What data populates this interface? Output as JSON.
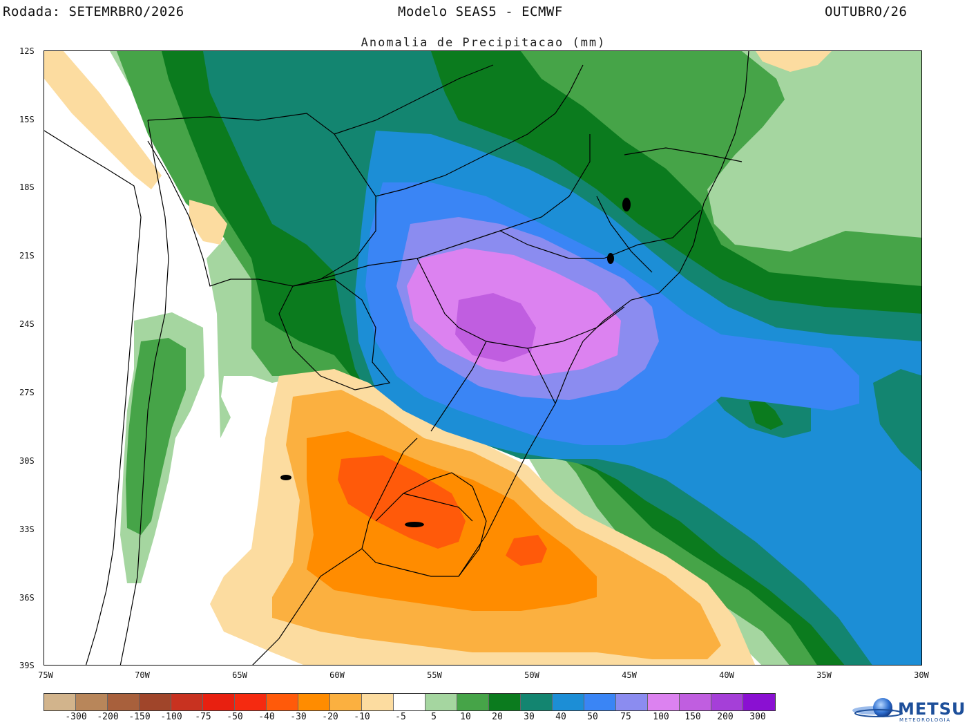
{
  "header": {
    "left": "Rodada: SETEMRBRO/2026",
    "center": "Modelo SEAS5 - ECMWF",
    "right": "OUTUBRO/26"
  },
  "subtitle": "Anomalia de Precipitacao (mm)",
  "latitude_labels": [
    "12S",
    "15S",
    "18S",
    "21S",
    "24S",
    "27S",
    "30S",
    "33S",
    "36S",
    "39S"
  ],
  "longitude_labels": [
    "75W",
    "70W",
    "65W",
    "60W",
    "55W",
    "50W",
    "45W",
    "40W",
    "35W",
    "30W"
  ],
  "colorbar": {
    "colors": [
      "#d2b48c",
      "#b8865a",
      "#a8603c",
      "#a0452a",
      "#c83220",
      "#e82010",
      "#f52a10",
      "#ff5a0a",
      "#ff8c00",
      "#fbb040",
      "#fcdca0",
      "#ffffff",
      "#a5d6a0",
      "#46a448",
      "#0b7b1e",
      "#138570",
      "#1c8ed6",
      "#3a85f5",
      "#8b8cf0",
      "#dc82f0",
      "#c05ee0",
      "#a53fd8",
      "#8a10d2"
    ],
    "ticks": [
      "-300",
      "-200",
      "-150",
      "-100",
      "-75",
      "-50",
      "-40",
      "-30",
      "-20",
      "-10",
      "-5",
      "5",
      "10",
      "20",
      "30",
      "40",
      "50",
      "75",
      "100",
      "150",
      "200",
      "300"
    ]
  },
  "logo": {
    "name": "METSUL",
    "sub": "METEOROLOGIA"
  }
}
